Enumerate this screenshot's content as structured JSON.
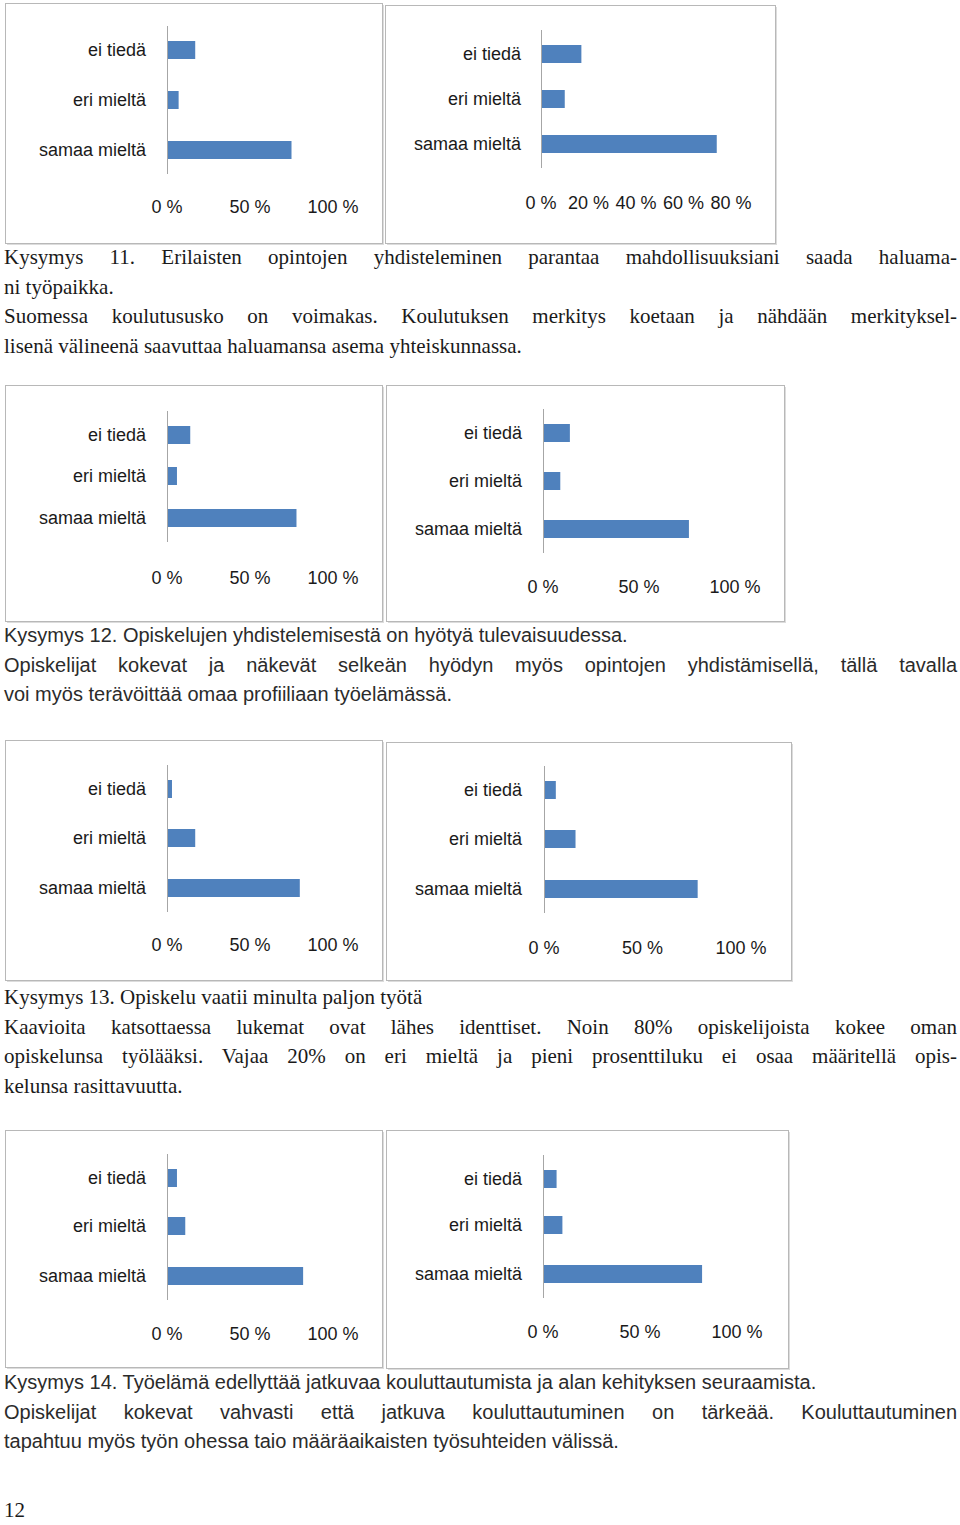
{
  "chart_data": [
    {
      "type": "bar",
      "orientation": "horizontal",
      "categories": [
        "ei tiedä",
        "eri mieltä",
        "samaa mieltä"
      ],
      "values": [
        17,
        7,
        75
      ],
      "color": "#4f81bd",
      "xlim": [
        0,
        100
      ],
      "xticks": [
        {
          "value": 0,
          "label": "0 %"
        },
        {
          "value": 50,
          "label": "50 %"
        },
        {
          "value": 100,
          "label": "100 %"
        }
      ],
      "grid": false
    },
    {
      "type": "bar",
      "orientation": "horizontal",
      "categories": [
        "ei tiedä",
        "eri mieltä",
        "samaa mieltä"
      ],
      "values": [
        17,
        10,
        74
      ],
      "color": "#4f81bd",
      "xlim": [
        0,
        80
      ],
      "xticks": [
        {
          "value": 0,
          "label": "0 %"
        },
        {
          "value": 20,
          "label": "20 %"
        },
        {
          "value": 40,
          "label": "40 %"
        },
        {
          "value": 60,
          "label": "60 %"
        },
        {
          "value": 80,
          "label": "80 %"
        }
      ],
      "grid": false
    },
    {
      "type": "bar",
      "orientation": "horizontal",
      "categories": [
        "ei tiedä",
        "eri mieltä",
        "samaa mieltä"
      ],
      "values": [
        14,
        6,
        78
      ],
      "color": "#4f81bd",
      "xlim": [
        0,
        100
      ],
      "xticks": [
        {
          "value": 0,
          "label": "0 %"
        },
        {
          "value": 50,
          "label": "50 %"
        },
        {
          "value": 100,
          "label": "100 %"
        }
      ],
      "grid": false
    },
    {
      "type": "bar",
      "orientation": "horizontal",
      "categories": [
        "ei tiedä",
        "eri mieltä",
        "samaa mieltä"
      ],
      "values": [
        14,
        9,
        76
      ],
      "color": "#4f81bd",
      "xlim": [
        0,
        100
      ],
      "xticks": [
        {
          "value": 0,
          "label": "0 %"
        },
        {
          "value": 50,
          "label": "50 %"
        },
        {
          "value": 100,
          "label": "100 %"
        }
      ],
      "grid": false
    },
    {
      "type": "bar",
      "orientation": "horizontal",
      "categories": [
        "ei tiedä",
        "eri mieltä",
        "samaa mieltä"
      ],
      "values": [
        3,
        17,
        80
      ],
      "color": "#4f81bd",
      "xlim": [
        0,
        100
      ],
      "xticks": [
        {
          "value": 0,
          "label": "0 %"
        },
        {
          "value": 50,
          "label": "50 %"
        },
        {
          "value": 100,
          "label": "100 %"
        }
      ],
      "grid": false
    },
    {
      "type": "bar",
      "orientation": "horizontal",
      "categories": [
        "ei tiedä",
        "eri mieltä",
        "samaa mieltä"
      ],
      "values": [
        6,
        16,
        78
      ],
      "color": "#4f81bd",
      "xlim": [
        0,
        100
      ],
      "xticks": [
        {
          "value": 0,
          "label": "0 %"
        },
        {
          "value": 50,
          "label": "50 %"
        },
        {
          "value": 100,
          "label": "100 %"
        }
      ],
      "grid": false
    },
    {
      "type": "bar",
      "orientation": "horizontal",
      "categories": [
        "ei tiedä",
        "eri mieltä",
        "samaa mieltä"
      ],
      "values": [
        6,
        11,
        82
      ],
      "color": "#4f81bd",
      "xlim": [
        0,
        100
      ],
      "xticks": [
        {
          "value": 0,
          "label": "0 %"
        },
        {
          "value": 50,
          "label": "50 %"
        },
        {
          "value": 100,
          "label": "100 %"
        }
      ],
      "grid": false
    },
    {
      "type": "bar",
      "orientation": "horizontal",
      "categories": [
        "ei tiedä",
        "eri mieltä",
        "samaa mieltä"
      ],
      "values": [
        7,
        10,
        82
      ],
      "color": "#4f81bd",
      "xlim": [
        0,
        100
      ],
      "xticks": [
        {
          "value": 0,
          "label": "0 %"
        },
        {
          "value": 50,
          "label": "50 %"
        },
        {
          "value": 100,
          "label": "100 %"
        }
      ],
      "grid": false
    }
  ],
  "text_blocks": [
    {
      "paragraphs": [
        [
          "Kysymys 11. Erilaisten opintojen yhdisteleminen parantaa mahdollisuuksiani saada haluama-",
          "ni työpaikka."
        ],
        [
          "Suomessa koulutususko on voimakas. Koulutuksen merkitys koetaan ja nähdään merkityksel-",
          "lisenä välineenä saavuttaa haluamansa asema yhteiskunnassa."
        ]
      ]
    },
    {
      "paragraphs": [
        [
          "Kysymys 12. Opiskelujen yhdistelemisestä on hyötyä tulevaisuudessa."
        ],
        [
          "Opiskelijat kokevat ja näkevät selkeän hyödyn myös opintojen yhdistämisellä, tällä tavalla",
          "voi myös terävöittää omaa profiiliaan työelämässä."
        ]
      ]
    },
    {
      "paragraphs": [
        [
          "Kysymys 13. Opiskelu vaatii minulta paljon työtä"
        ],
        [
          "Kaavioita katsottaessa lukemat ovat lähes identtiset. Noin 80% opiskelijoista kokee oman",
          "opiskelunsa työlääksi. Vajaa 20% on eri mieltä ja pieni prosenttiluku ei osaa määritellä opis-",
          "kelunsa rasittavuutta."
        ]
      ]
    },
    {
      "paragraphs": [
        [
          "Kysymys 14. Työelämä edellyttää jatkuvaa kouluttautumista ja alan kehityksen seuraamista."
        ],
        [
          "Opiskelijat kokevat vahvasti että jatkuva kouluttautuminen on tärkeää. Kouluttautuminen",
          "tapahtuu myös työn ohessa taio määräaikaisten työsuhteiden välissä."
        ]
      ]
    }
  ],
  "page_number": "12"
}
